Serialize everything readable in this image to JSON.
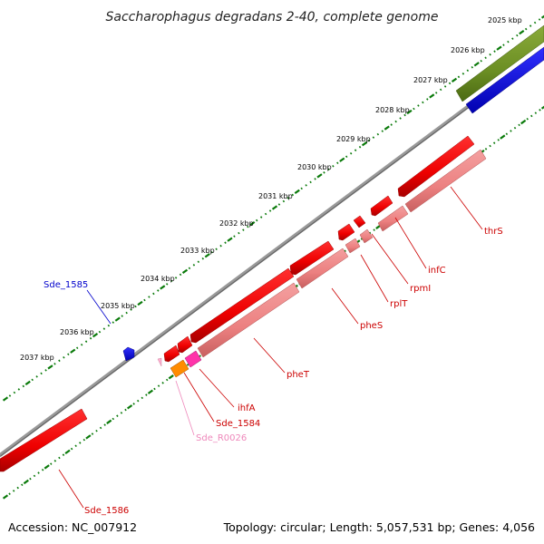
{
  "title": "Saccharophagus degradans 2-40, complete genome",
  "footer": {
    "accession": "Accession: NC_007912",
    "summary": "Topology: circular; Length: 5,057,531 bp; Genes: 4,056"
  },
  "kbp_labels": [
    "2025 kbp",
    "2026 kbp",
    "2027 kbp",
    "2028 kbp",
    "2029 kbp",
    "2030 kbp",
    "2031 kbp",
    "2032 kbp",
    "2033 kbp",
    "2034 kbp",
    "2035 kbp",
    "2036 kbp",
    "2037 kbp"
  ],
  "genes": [
    {
      "name": "thrS",
      "color": "#dd0000"
    },
    {
      "name": "infC",
      "color": "#dd0000"
    },
    {
      "name": "rpmI",
      "color": "#dd0000"
    },
    {
      "name": "rplT",
      "color": "#dd0000"
    },
    {
      "name": "pheS",
      "color": "#dd0000"
    },
    {
      "name": "pheT",
      "color": "#dd0000"
    },
    {
      "name": "ihfA",
      "color": "#dd0000"
    },
    {
      "name": "Sde_1584",
      "color": "#dd0000"
    },
    {
      "name": "Sde_R0026",
      "color": "#ee88bb"
    },
    {
      "name": "Sde_1585",
      "color": "#0000cc"
    },
    {
      "name": "Sde_1586",
      "color": "#dd0000"
    }
  ],
  "colors": {
    "cds": "#ff0000",
    "cds_light": "#f08080",
    "backbone": "#888888",
    "ticks": "#008000",
    "rrna_green": "#6b8e23",
    "blue_feature": "#0000ff",
    "orange_feature": "#ff8c00",
    "magenta_feature": "#ff33aa"
  }
}
